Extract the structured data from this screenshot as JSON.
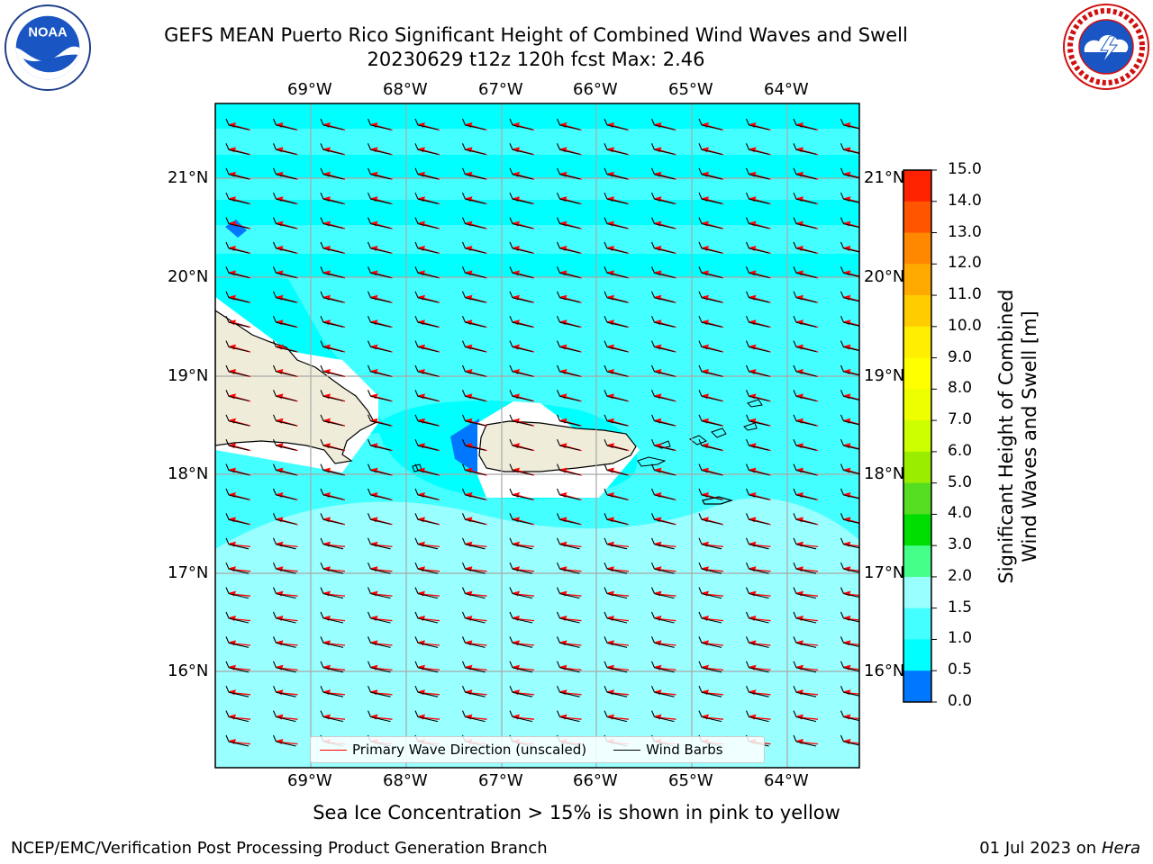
{
  "title": {
    "line1": "GEFS MEAN Puerto Rico Significant Height of Combined Wind Waves and Swell",
    "line2": "20230629 t12z 120h fcst   Max: 2.46"
  },
  "logos": {
    "noaa": {
      "text": "NOAA",
      "icon": "noaa-logo-icon"
    },
    "nws": {
      "icon": "nws-logo-icon"
    }
  },
  "map": {
    "lon_ticks": [
      "69°W",
      "68°W",
      "67°W",
      "66°W",
      "65°W",
      "64°W"
    ],
    "lat_ticks": [
      "21°N",
      "20°N",
      "19°N",
      "18°N",
      "17°N",
      "16°N"
    ],
    "colors": {
      "land": "#efedda",
      "coast": "#000000",
      "grid": "#a8a8a8",
      "wave_arrow": "#ff0000",
      "wind_barb": "#000000"
    }
  },
  "colorbar": {
    "label_line1": "Significant Height of Combined",
    "label_line2": "Wind Waves and Swell [m]",
    "ticks": [
      "15.0",
      "14.0",
      "13.0",
      "12.0",
      "11.0",
      "10.0",
      "9.0",
      "8.0",
      "7.0",
      "6.0",
      "5.0",
      "4.0",
      "3.0",
      "2.0",
      "1.5",
      "1.0",
      "0.5",
      "0.0"
    ],
    "colors": [
      "#ff0000",
      "#ff2200",
      "#ff5500",
      "#ff8800",
      "#ffaa00",
      "#ffcc00",
      "#ffee00",
      "#ffff00",
      "#eeff00",
      "#ccff00",
      "#99ee00",
      "#55dd22",
      "#00dd00",
      "#44ff88",
      "#99ffff",
      "#44ffff",
      "#00ffff",
      "#0077ff",
      "#0000ff"
    ]
  },
  "legend": {
    "wave_label": "Primary Wave Direction (unscaled)",
    "barb_label": "Wind Barbs"
  },
  "footer": {
    "note": "Sea Ice Concentration > 15% is shown in pink to yellow",
    "left": "NCEP/EMC/Verification Post Processing Product Generation Branch",
    "right_prefix": "01 Jul 2023 on ",
    "right_host": "Hera"
  }
}
